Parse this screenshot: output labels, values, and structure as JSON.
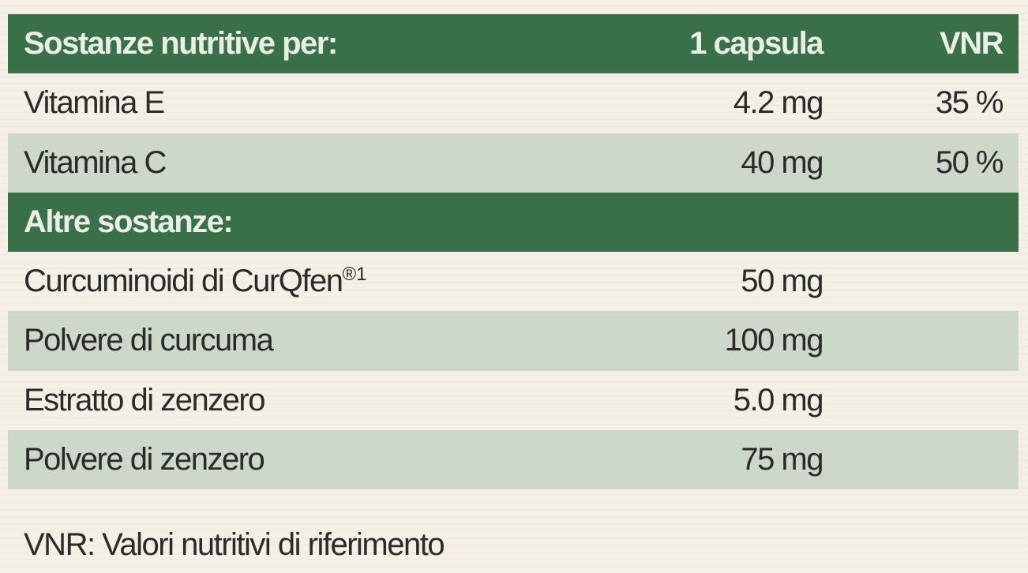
{
  "nutrients": {
    "header": [
      "Sostanze nutritive per:",
      "1 capsula",
      "VNR"
    ],
    "rows": [
      [
        "Vitamina E",
        "4.2 mg",
        "35 %"
      ],
      [
        "Vitamina C",
        "40 mg",
        "50 %"
      ]
    ]
  },
  "others": {
    "header": "Altre sostanze:",
    "rows": [
      [
        {
          "text": "Curcuminoidi di CurQfen",
          "sup": "®1"
        },
        "50 mg"
      ],
      [
        "Polvere di curcuma",
        "100 mg"
      ],
      [
        "Estratto di zenzero",
        "5.0 mg"
      ],
      [
        "Polvere di zenzero",
        "75 mg"
      ]
    ]
  },
  "footnote": "VNR: Valori nutritivi di riferimento"
}
